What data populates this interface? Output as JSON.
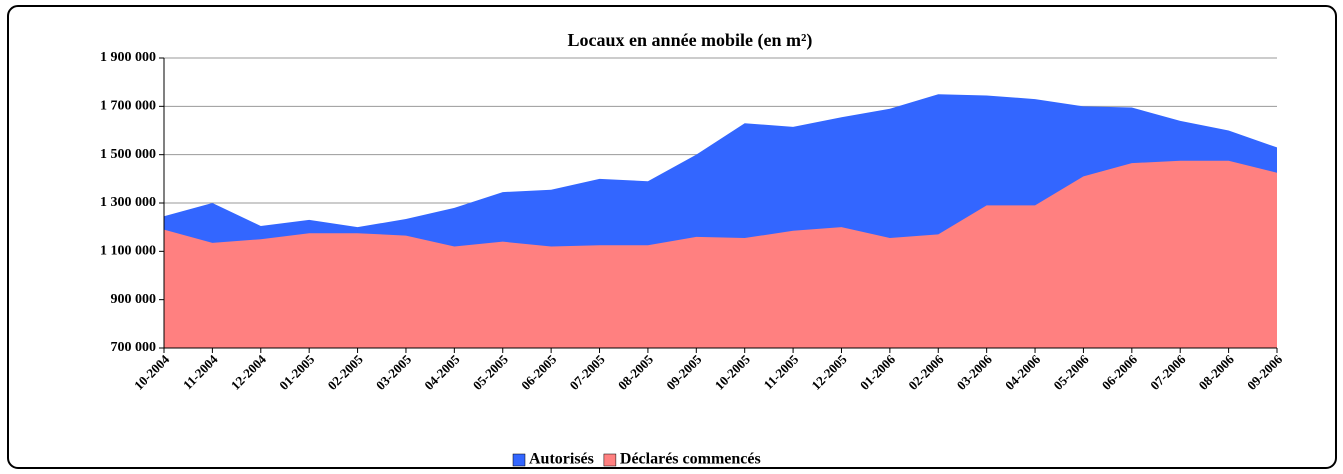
{
  "chart_data": {
    "type": "area",
    "title": "Locaux en année mobile (en m²)",
    "categories": [
      "10-2004",
      "11-2004",
      "12-2004",
      "01-2005",
      "02-2005",
      "03-2005",
      "04-2005",
      "05-2005",
      "06-2005",
      "07-2005",
      "08-2005",
      "09-2005",
      "10-2005",
      "11-2005",
      "12-2005",
      "01-2006",
      "02-2006",
      "03-2006",
      "04-2006",
      "05-2006",
      "06-2006",
      "07-2006",
      "08-2006",
      "09-2006"
    ],
    "series": [
      {
        "name": "Autorisés",
        "color": "#3366ff",
        "values": [
          1245000,
          1300000,
          1205000,
          1230000,
          1200000,
          1234000,
          1280000,
          1345000,
          1355000,
          1400000,
          1390000,
          1500000,
          1630000,
          1615000,
          1655000,
          1690000,
          1750000,
          1745000,
          1730000,
          1700000,
          1695000,
          1640000,
          1600000,
          1530000
        ]
      },
      {
        "name": "Déclarés commencés",
        "color": "#ff8080",
        "values": [
          1190000,
          1135000,
          1150000,
          1175000,
          1175000,
          1165000,
          1120000,
          1140000,
          1120000,
          1125000,
          1125000,
          1160000,
          1155000,
          1185000,
          1200000,
          1155000,
          1170000,
          1290000,
          1290000,
          1410000,
          1465000,
          1475000,
          1475000,
          1425000
        ]
      }
    ],
    "ylim": [
      700000,
      1900000
    ],
    "yticks": [
      {
        "value": 700000,
        "label": "700 000"
      },
      {
        "value": 900000,
        "label": "900 000"
      },
      {
        "value": 1100000,
        "label": "1 100 000"
      },
      {
        "value": 1300000,
        "label": "1 300 000"
      },
      {
        "value": 1500000,
        "label": "1 500 000"
      },
      {
        "value": 1700000,
        "label": "1 700 000"
      },
      {
        "value": 1900000,
        "label": "1 900 000"
      }
    ],
    "grid": true,
    "legend": "bottom"
  }
}
